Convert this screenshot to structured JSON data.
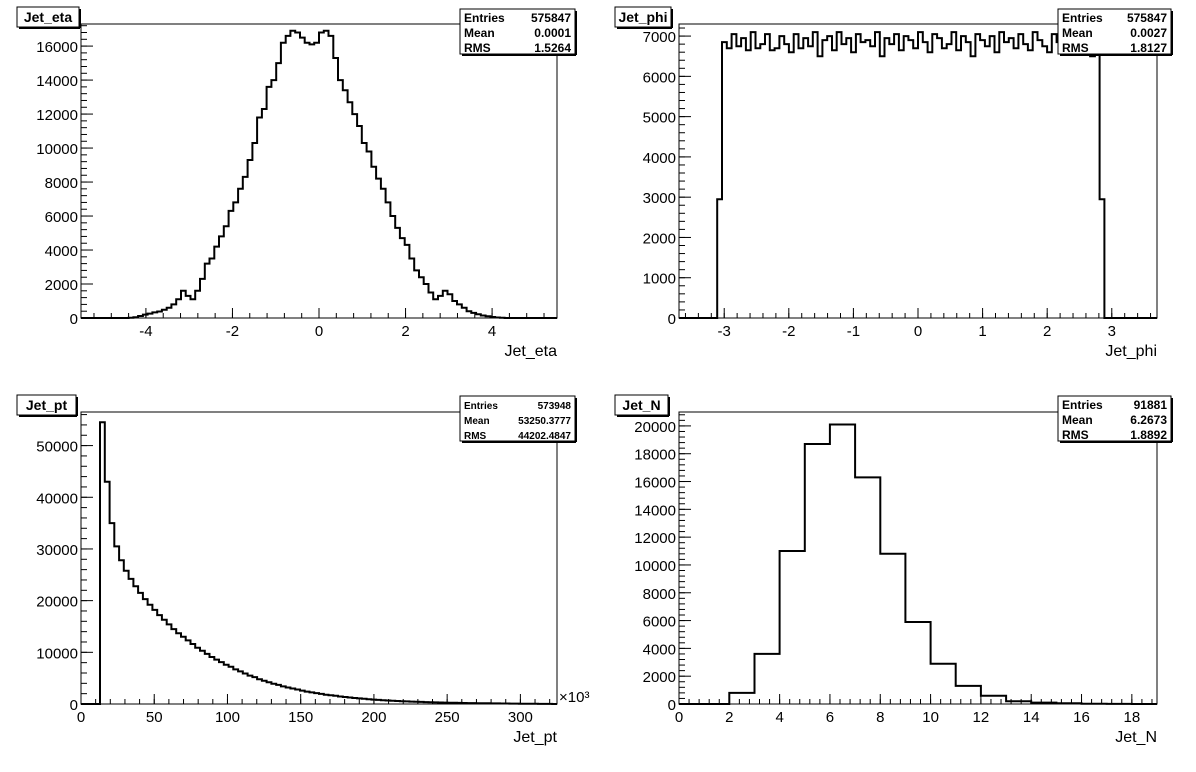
{
  "chart_data": [
    {
      "type": "histogram",
      "title": "Jet_eta",
      "xlabel": "Jet_eta",
      "ylabel": "",
      "xlim": [
        -5.5,
        5.5
      ],
      "ylim": [
        0,
        17300
      ],
      "xticks": [
        -4,
        -2,
        0,
        2,
        4
      ],
      "yticks": [
        0,
        2000,
        4000,
        6000,
        8000,
        10000,
        12000,
        14000,
        16000
      ],
      "bin_edges": [
        -5.5,
        5.5
      ],
      "values": [
        0,
        0,
        0,
        0,
        0,
        0,
        0,
        0,
        0,
        0,
        20,
        50,
        120,
        200,
        260,
        330,
        380,
        480,
        600,
        800,
        1100,
        1600,
        1300,
        1100,
        1600,
        2300,
        3200,
        3500,
        4200,
        4800,
        5400,
        6300,
        6800,
        7600,
        8300,
        9300,
        10300,
        11800,
        12300,
        13600,
        14000,
        15000,
        16200,
        16600,
        16900,
        16800,
        16500,
        16200,
        16100,
        16200,
        16800,
        16900,
        16600,
        15300,
        14000,
        13400,
        12700,
        12000,
        11300,
        10300,
        9800,
        8900,
        8200,
        7600,
        6800,
        6000,
        5300,
        4700,
        4300,
        3500,
        2800,
        2400,
        2000,
        1500,
        1100,
        1300,
        1600,
        1400,
        1000,
        800,
        600,
        400,
        300,
        220,
        150,
        100,
        60,
        30,
        10,
        0,
        0,
        0,
        0,
        0,
        0,
        0,
        0,
        0,
        0,
        0
      ]
    },
    {
      "type": "histogram",
      "title": "Jet_phi",
      "xlabel": "Jet_phi",
      "ylabel": "",
      "xlim": [
        -3.7,
        3.7
      ],
      "ylim": [
        0,
        7300
      ],
      "xticks": [
        -3,
        -2,
        -1,
        0,
        1,
        2,
        3
      ],
      "yticks": [
        0,
        1000,
        2000,
        3000,
        4000,
        5000,
        6000,
        7000
      ],
      "bin_edges": [
        -3.7,
        3.7
      ],
      "values": [
        0,
        0,
        0,
        0,
        0,
        0,
        0,
        0,
        2950,
        6850,
        6700,
        7050,
        6750,
        6950,
        6650,
        7100,
        6700,
        6800,
        7050,
        6650,
        6700,
        7000,
        6800,
        6600,
        7050,
        6700,
        6950,
        6750,
        7100,
        6500,
        6900,
        7000,
        6650,
        7100,
        6800,
        6950,
        6600,
        7050,
        6850,
        6900,
        6750,
        7100,
        6500,
        6950,
        6800,
        7050,
        6650,
        7000,
        6900,
        6700,
        7100,
        6850,
        6600,
        7050,
        6950,
        6700,
        6800,
        7100,
        6650,
        7000,
        6850,
        6500,
        7050,
        6900,
        6750,
        7000,
        6600,
        7100,
        6850,
        6950,
        6700,
        7050,
        6800,
        6650,
        7100,
        6900,
        6750,
        6600,
        7050,
        6850,
        6950,
        6700,
        7100,
        6800,
        6650,
        7000,
        6500,
        6900,
        2950,
        0,
        0,
        0,
        0,
        0,
        0,
        0,
        0,
        0,
        0,
        0
      ]
    },
    {
      "type": "histogram",
      "title": "Jet_pt",
      "xlabel": "Jet_pt",
      "ylabel": "",
      "xlim": [
        0,
        325
      ],
      "ylim": [
        0,
        56500
      ],
      "xticks": [
        0,
        50,
        100,
        150,
        200,
        250,
        300
      ],
      "yticks": [
        0,
        10000,
        20000,
        30000,
        40000,
        50000
      ],
      "x_multiplier": "×10³",
      "bin_edges": [
        0,
        325
      ],
      "values": [
        0,
        0,
        0,
        0,
        54500,
        43000,
        35000,
        30500,
        27800,
        25800,
        24200,
        22800,
        21500,
        20300,
        19200,
        18200,
        17200,
        16300,
        15400,
        14500,
        13700,
        13000,
        12300,
        11600,
        10900,
        10300,
        9700,
        9100,
        8600,
        8100,
        7600,
        7200,
        6700,
        6300,
        5900,
        5500,
        5200,
        4800,
        4500,
        4200,
        3900,
        3700,
        3400,
        3200,
        3000,
        2800,
        2600,
        2400,
        2250,
        2100,
        1950,
        1800,
        1700,
        1580,
        1460,
        1350,
        1250,
        1160,
        1080,
        1000,
        930,
        860,
        790,
        730,
        680,
        630,
        580,
        540,
        500,
        460,
        430,
        400,
        370,
        340,
        310,
        290,
        270,
        250,
        230,
        210,
        195,
        180,
        165,
        150,
        140,
        130,
        120,
        110,
        100,
        90,
        80,
        70,
        60,
        50,
        40,
        30,
        20,
        15,
        10,
        0
      ]
    },
    {
      "type": "histogram",
      "title": "Jet_N",
      "xlabel": "Jet_N",
      "ylabel": "",
      "xlim": [
        0,
        19
      ],
      "ylim": [
        0,
        21000
      ],
      "xticks": [
        0,
        2,
        4,
        6,
        8,
        10,
        12,
        14,
        16,
        18
      ],
      "yticks": [
        0,
        2000,
        4000,
        6000,
        8000,
        10000,
        12000,
        14000,
        16000,
        18000,
        20000
      ],
      "bin_edges": [
        0,
        19
      ],
      "values": [
        0,
        0,
        800,
        3600,
        11000,
        18700,
        20100,
        16300,
        10800,
        5900,
        2900,
        1300,
        600,
        200,
        100,
        50,
        20,
        10,
        0
      ]
    }
  ],
  "stats": [
    {
      "labels": [
        "Entries",
        "Mean",
        "RMS"
      ],
      "values": [
        "575847",
        "0.0001",
        "1.5264"
      ]
    },
    {
      "labels": [
        "Entries",
        "Mean",
        "RMS"
      ],
      "values": [
        "575847",
        "0.0027",
        "1.8127"
      ]
    },
    {
      "labels": [
        "Entries",
        "Mean",
        "RMS"
      ],
      "values": [
        "573948",
        "53250.3777",
        "44202.4847"
      ]
    },
    {
      "labels": [
        "Entries",
        "Mean",
        "RMS"
      ],
      "values": [
        "91881",
        "6.2673",
        "1.8892"
      ]
    }
  ]
}
